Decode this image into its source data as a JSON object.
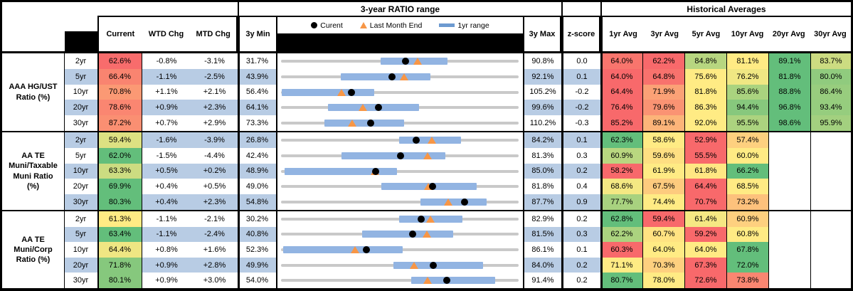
{
  "palette": {
    "red": "#F8696B",
    "yellow": "#FFEB84",
    "green": "#63BE7B",
    "stripe": "#B8CCE4",
    "bar_fill": "#92B4E2",
    "bar_legend": "#6D9AD0",
    "range_line": "#C9C9C9",
    "dot": "#000000",
    "triangle": "#F79646"
  },
  "header": {
    "range_title": "3-year RATIO range",
    "hist_title": "Historical Averages",
    "value_cols": [
      "Current",
      "WTD Chg",
      "MTD Chg"
    ],
    "min_col": "3y Min",
    "max_col": "3y Max",
    "z_col": "z-score",
    "avg_cols": [
      "1yr Avg",
      "3yr Avg",
      "5yr Avg",
      "10yr Avg",
      "20yr Avg",
      "30yr Avg"
    ],
    "legend": {
      "current": "Curent",
      "last_month": "Last Month End",
      "range": "1yr range"
    }
  },
  "chart_data": {
    "type": "range-bar",
    "x_axis": "ratio percent; each row scaled from its 3y Min to 3y Max",
    "marker_meaning": {
      "dot": "Current",
      "triangle": "Last Month End",
      "bar": "1yr range",
      "gray_line": "3-year min-max range"
    },
    "groups": [
      {
        "label": "AAA HG/UST\nRatio (%)",
        "rows": [
          {
            "tenor": "2yr",
            "current": 62.6,
            "wtd": "-0.8%",
            "mtd": "-3.1%",
            "min": 31.7,
            "max": 90.8,
            "z": "0.0",
            "last_month": 65.7,
            "bar1yr": [
              56.4,
              73.2
            ],
            "avgs": [
              64.0,
              62.2,
              84.8,
              81.1,
              89.1,
              83.7
            ]
          },
          {
            "tenor": "5yr",
            "current": 66.4,
            "wtd": "-1.1%",
            "mtd": "-2.5%",
            "min": 43.9,
            "max": 92.1,
            "z": "0.1",
            "last_month": 68.9,
            "bar1yr": [
              56.0,
              74.3
            ],
            "avgs": [
              64.0,
              64.8,
              75.6,
              76.2,
              81.8,
              80.0
            ]
          },
          {
            "tenor": "10yr",
            "current": 70.8,
            "wtd": "+1.1%",
            "mtd": "+2.1%",
            "min": 56.4,
            "max": 105.2,
            "z": "-0.2",
            "last_month": 68.7,
            "bar1yr": [
              56.4,
              75.5
            ],
            "avgs": [
              64.4,
              71.9,
              81.8,
              85.6,
              88.8,
              86.4
            ]
          },
          {
            "tenor": "20yr",
            "current": 78.6,
            "wtd": "+0.9%",
            "mtd": "+2.3%",
            "min": 64.1,
            "max": 99.6,
            "z": "-0.2",
            "last_month": 76.3,
            "bar1yr": [
              71.1,
              84.7
            ],
            "avgs": [
              76.4,
              79.6,
              86.3,
              94.4,
              96.8,
              93.4
            ]
          },
          {
            "tenor": "30yr",
            "current": 87.2,
            "wtd": "+0.7%",
            "mtd": "+2.9%",
            "min": 73.3,
            "max": 110.2,
            "z": "-0.3",
            "last_month": 84.3,
            "bar1yr": [
              80.0,
              92.4
            ],
            "avgs": [
              85.2,
              89.1,
              92.0,
              95.5,
              98.6,
              95.9
            ]
          }
        ]
      },
      {
        "label": "AA TE\nMuni/Taxable\nMuni Ratio\n(%)",
        "rows": [
          {
            "tenor": "2yr",
            "current": 59.4,
            "wtd": "-1.6%",
            "mtd": "-3.9%",
            "min": 26.8,
            "max": 84.2,
            "z": "0.1",
            "last_month": 63.3,
            "bar1yr": [
              55.3,
              70.4
            ],
            "avgs": [
              62.3,
              58.6,
              52.9,
              57.4,
              null,
              null
            ]
          },
          {
            "tenor": "5yr",
            "current": 62.0,
            "wtd": "-1.5%",
            "mtd": "-4.4%",
            "min": 42.4,
            "max": 81.3,
            "z": "0.3",
            "last_month": 66.4,
            "bar1yr": [
              52.2,
              69.4
            ],
            "avgs": [
              60.9,
              59.6,
              55.5,
              60.0,
              null,
              null
            ]
          },
          {
            "tenor": "10yr",
            "current": 63.3,
            "wtd": "+0.5%",
            "mtd": "+0.2%",
            "min": 48.9,
            "max": 85.0,
            "z": "0.2",
            "last_month": 63.1,
            "bar1yr": [
              49.3,
              66.5
            ],
            "avgs": [
              58.2,
              61.9,
              61.8,
              66.2,
              null,
              null
            ]
          },
          {
            "tenor": "20yr",
            "current": 69.9,
            "wtd": "+0.4%",
            "mtd": "+0.5%",
            "min": 49.0,
            "max": 81.8,
            "z": "0.4",
            "last_month": 69.4,
            "bar1yr": [
              62.8,
              76.1
            ],
            "avgs": [
              68.6,
              67.5,
              64.4,
              68.5,
              null,
              null
            ]
          },
          {
            "tenor": "30yr",
            "current": 80.3,
            "wtd": "+0.4%",
            "mtd": "+2.3%",
            "min": 54.8,
            "max": 87.7,
            "z": "0.9",
            "last_month": 78.0,
            "bar1yr": [
              74.1,
              83.3
            ],
            "avgs": [
              77.7,
              74.4,
              70.7,
              73.2,
              null,
              null
            ]
          }
        ]
      },
      {
        "label": "AA TE\nMuni/Corp\nRatio (%)",
        "rows": [
          {
            "tenor": "2yr",
            "current": 61.3,
            "wtd": "-1.1%",
            "mtd": "-2.1%",
            "min": 30.2,
            "max": 82.9,
            "z": "0.2",
            "last_month": 63.4,
            "bar1yr": [
              56.4,
              70.5
            ],
            "avgs": [
              62.8,
              59.4,
              61.4,
              60.9,
              null,
              null
            ]
          },
          {
            "tenor": "5yr",
            "current": 63.4,
            "wtd": "-1.1%",
            "mtd": "-2.4%",
            "min": 40.8,
            "max": 81.5,
            "z": "0.3",
            "last_month": 65.8,
            "bar1yr": [
              54.6,
              70.3
            ],
            "avgs": [
              62.2,
              60.7,
              59.2,
              60.8,
              null,
              null
            ]
          },
          {
            "tenor": "10yr",
            "current": 64.4,
            "wtd": "+0.8%",
            "mtd": "+1.6%",
            "min": 52.3,
            "max": 86.1,
            "z": "0.1",
            "last_month": 62.8,
            "bar1yr": [
              52.5,
              69.6
            ],
            "avgs": [
              60.3,
              64.0,
              64.0,
              67.8,
              null,
              null
            ]
          },
          {
            "tenor": "20yr",
            "current": 71.8,
            "wtd": "+0.9%",
            "mtd": "+2.8%",
            "min": 49.9,
            "max": 84.0,
            "z": "0.2",
            "last_month": 69.0,
            "bar1yr": [
              66.0,
              79.0
            ],
            "avgs": [
              71.1,
              70.3,
              67.3,
              72.0,
              null,
              null
            ]
          },
          {
            "tenor": "30yr",
            "current": 80.1,
            "wtd": "+0.9%",
            "mtd": "+3.0%",
            "min": 54.0,
            "max": 91.4,
            "z": "0.2",
            "last_month": 77.1,
            "bar1yr": [
              74.5,
              87.8
            ],
            "avgs": [
              80.7,
              78.0,
              72.6,
              73.8,
              null,
              null
            ]
          }
        ]
      }
    ]
  }
}
